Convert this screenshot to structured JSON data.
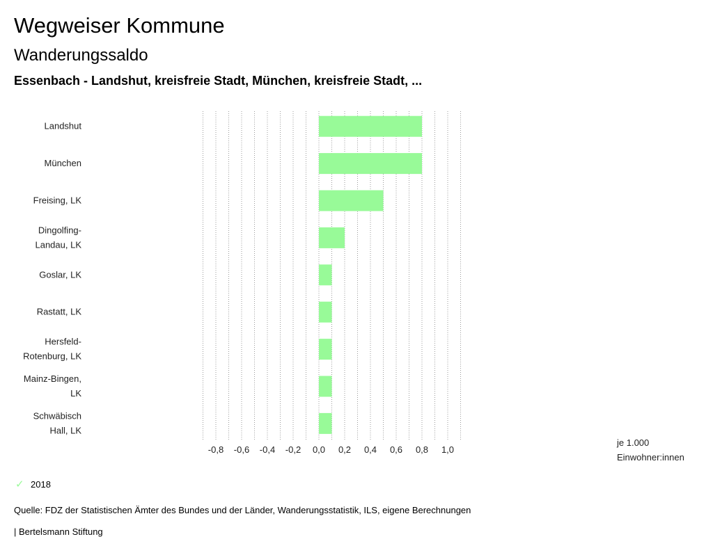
{
  "header": {
    "title": "Wegweiser Kommune",
    "subtitle": "Wanderungssaldo",
    "description": "Essenbach - Landshut, kreisfreie Stadt, München, kreisfreie Stadt, ..."
  },
  "chart_data": {
    "type": "bar",
    "orientation": "horizontal",
    "categories": [
      [
        "Landshut"
      ],
      [
        "München"
      ],
      [
        "Freising, LK"
      ],
      [
        "Dingolfing-",
        "Landau, LK"
      ],
      [
        "Goslar, LK"
      ],
      [
        "Rastatt, LK"
      ],
      [
        "Hersfeld-",
        "Rotenburg, LK"
      ],
      [
        "Mainz-Bingen,",
        "LK"
      ],
      [
        "Schwäbisch",
        "Hall, LK"
      ]
    ],
    "series": [
      {
        "name": "2018",
        "color": "#98fa98",
        "values": [
          0.8,
          0.8,
          0.5,
          0.2,
          0.1,
          0.1,
          0.1,
          0.1,
          0.1
        ]
      }
    ],
    "xlim": [
      -0.9,
      1.1
    ],
    "ticks": [
      -0.8,
      -0.6,
      -0.4,
      -0.2,
      0.0,
      0.2,
      0.4,
      0.6,
      0.8,
      1.0
    ],
    "tick_labels": [
      "-0,8",
      "-0,6",
      "-0,4",
      "-0,2",
      "0,0",
      "0,2",
      "0,4",
      "0,6",
      "0,8",
      "1,0"
    ],
    "grid_step": 0.1,
    "unit_label": [
      "je 1.000",
      "Einwohner:innen"
    ],
    "legend_position": "bottom-left"
  },
  "legend": {
    "check_icon": "✓",
    "label": "2018"
  },
  "footer": {
    "source": "Quelle: FDZ der Statistischen Ämter des Bundes und der Länder, Wanderungsstatistik, ILS, eigene Berechnungen",
    "brand": "| Bertelsmann Stiftung"
  }
}
